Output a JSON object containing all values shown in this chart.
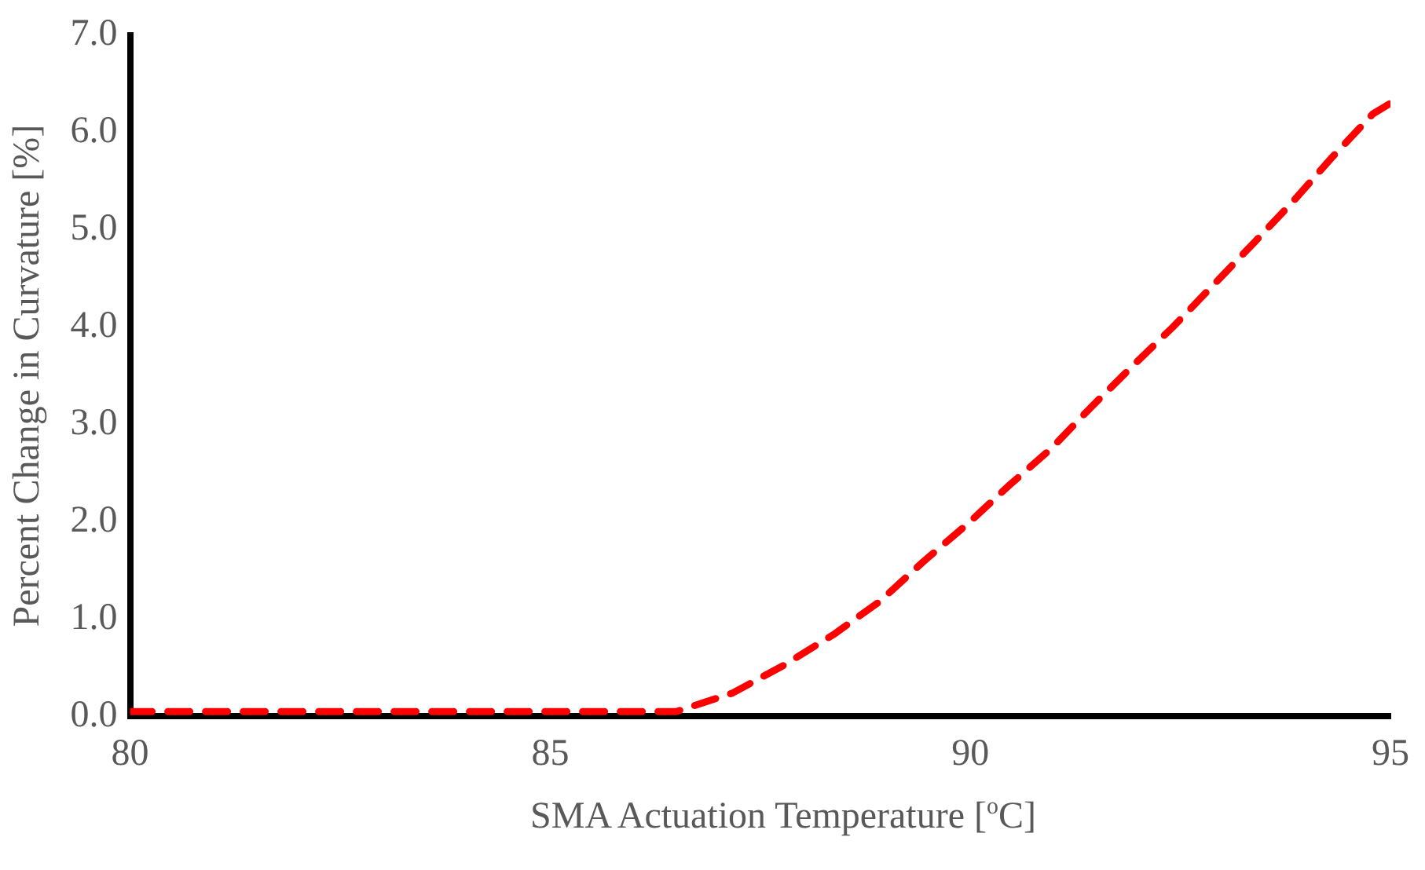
{
  "chart_data": {
    "type": "line",
    "xlabel": "SMA Actuation Temperature [$^{o}$C]",
    "ylabel": "Percent Change in Curvature [%]",
    "x": [
      80,
      86.5,
      87.17,
      87.79,
      88.37,
      88.92,
      89.44,
      89.97,
      90.47,
      90.96,
      91.44,
      91.93,
      92.41,
      92.9,
      93.39,
      93.85,
      94.3,
      94.79,
      95
    ],
    "series": [
      {
        "color": "#ff0000",
        "values": [
          0.05,
          0.05,
          0.24,
          0.53,
          0.84,
          1.18,
          1.59,
          1.98,
          2.38,
          2.75,
          3.18,
          3.6,
          4.0,
          4.44,
          4.88,
          5.3,
          5.74,
          6.19,
          6.3
        ]
      }
    ],
    "xlim": [
      80,
      95
    ],
    "xticks": [
      80,
      85,
      90,
      95
    ],
    "ylim": [
      0,
      7
    ],
    "yticks": [
      {
        "value": 0,
        "label": "0.0"
      },
      {
        "value": 1,
        "label": "1.0"
      },
      {
        "value": 2,
        "label": "2.0"
      },
      {
        "value": 3,
        "label": "3.0"
      },
      {
        "value": 4,
        "label": "4.0"
      },
      {
        "value": 5,
        "label": "5.0"
      },
      {
        "value": 6,
        "label": "6.0"
      },
      {
        "value": 7,
        "label": "7.0"
      }
    ],
    "grid": false,
    "legend": false,
    "marker": "none",
    "line_style": "dashed"
  }
}
